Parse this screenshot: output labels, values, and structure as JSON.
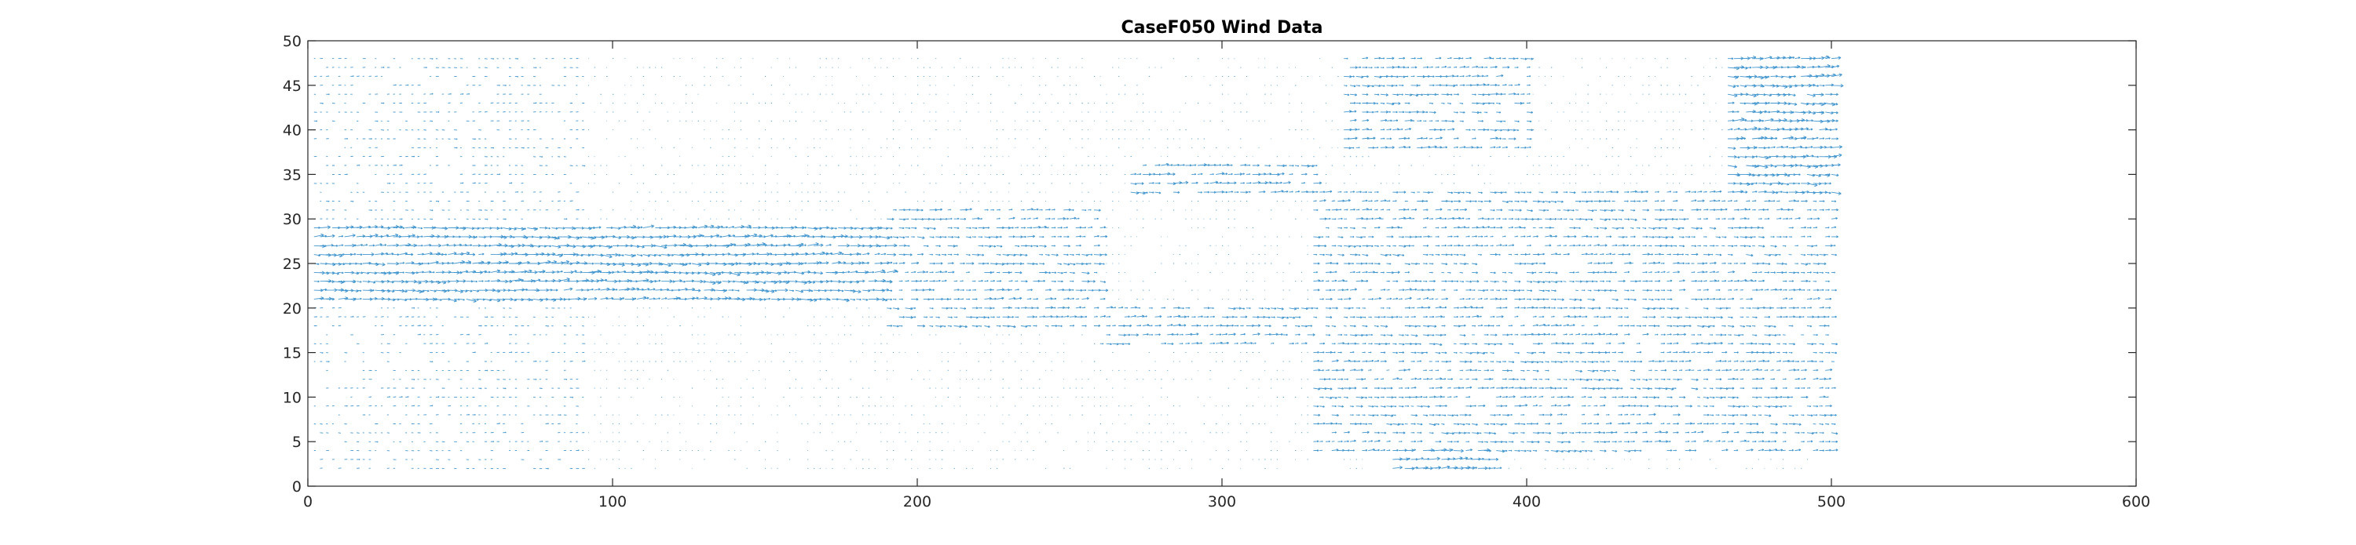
{
  "chart_data": {
    "type": "quiver",
    "title": "CaseF050 Wind Data",
    "xlabel": "",
    "ylabel": "",
    "xlim": [
      0,
      600
    ],
    "ylim": [
      0,
      50
    ],
    "xticks": [
      0,
      100,
      200,
      300,
      400,
      500,
      600
    ],
    "yticks": [
      0,
      5,
      10,
      15,
      20,
      25,
      30,
      35,
      40,
      45,
      50
    ],
    "grid": false,
    "legend": "none",
    "series_color": "#0072bd",
    "grid_spacing": {
      "dx": 2,
      "dy": 1
    },
    "data_extent": {
      "x": [
        2,
        500
      ],
      "y": [
        2,
        48
      ]
    },
    "strong_regions": [
      {
        "x": [
          0,
          190
        ],
        "y": [
          21,
          29
        ],
        "strength": 0.9
      },
      {
        "x": [
          60,
          160
        ],
        "y": [
          23,
          28
        ],
        "strength": 1.0
      },
      {
        "x": [
          190,
          260
        ],
        "y": [
          18,
          31
        ],
        "strength": 0.6
      },
      {
        "x": [
          260,
          330
        ],
        "y": [
          16,
          20
        ],
        "strength": 0.6
      },
      {
        "x": [
          270,
          330
        ],
        "y": [
          33,
          36
        ],
        "strength": 0.7
      },
      {
        "x": [
          355,
          390
        ],
        "y": [
          2,
          4
        ],
        "strength": 0.9
      },
      {
        "x": [
          340,
          400
        ],
        "y": [
          38,
          48
        ],
        "strength": 0.6
      },
      {
        "x": [
          465,
          500
        ],
        "y": [
          33,
          48
        ],
        "strength": 0.9
      },
      {
        "x": [
          330,
          500
        ],
        "y": [
          4,
          33
        ],
        "strength": 0.55
      },
      {
        "x": [
          0,
          90
        ],
        "y": [
          2,
          20
        ],
        "strength": 0.25
      },
      {
        "x": [
          0,
          90
        ],
        "y": [
          30,
          48
        ],
        "strength": 0.25
      }
    ]
  }
}
